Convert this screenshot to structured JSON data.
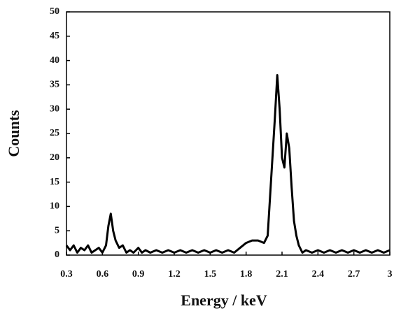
{
  "chart_data": {
    "type": "line",
    "x_label": "Energy  / keV",
    "y_label": "Counts",
    "x": [
      0.3,
      0.33,
      0.36,
      0.39,
      0.42,
      0.45,
      0.48,
      0.51,
      0.54,
      0.57,
      0.6,
      0.63,
      0.65,
      0.67,
      0.69,
      0.71,
      0.74,
      0.77,
      0.8,
      0.83,
      0.86,
      0.9,
      0.93,
      0.96,
      1.0,
      1.05,
      1.1,
      1.15,
      1.2,
      1.25,
      1.3,
      1.35,
      1.4,
      1.45,
      1.5,
      1.55,
      1.6,
      1.65,
      1.7,
      1.75,
      1.8,
      1.85,
      1.9,
      1.95,
      1.98,
      2.0,
      2.02,
      2.04,
      2.06,
      2.08,
      2.1,
      2.12,
      2.14,
      2.16,
      2.18,
      2.2,
      2.22,
      2.24,
      2.27,
      2.3,
      2.35,
      2.4,
      2.45,
      2.5,
      2.55,
      2.6,
      2.65,
      2.7,
      2.75,
      2.8,
      2.85,
      2.9,
      2.95,
      3.0
    ],
    "series": [
      {
        "color": "#000000",
        "values": [
          2,
          1,
          2,
          0.5,
          1.5,
          1,
          2,
          0.5,
          1,
          1.5,
          0.5,
          2,
          6,
          8.5,
          5,
          3,
          1.5,
          2,
          0.5,
          1,
          0.5,
          1.5,
          0.5,
          1,
          0.5,
          1,
          0.5,
          1,
          0.5,
          1,
          0.5,
          1,
          0.5,
          1,
          0.5,
          1,
          0.5,
          1,
          0.5,
          1.5,
          2.5,
          3,
          3,
          2.5,
          4,
          12,
          20,
          28,
          37,
          30,
          20,
          18,
          25,
          22,
          14,
          7,
          4,
          2,
          0.5,
          1,
          0.5,
          1,
          0.5,
          1,
          0.5,
          1,
          0.5,
          1,
          0.5,
          1,
          0.5,
          1,
          0.5,
          1
        ]
      }
    ],
    "xlim": [
      0.3,
      3
    ],
    "xticks": [
      0.3,
      0.6,
      0.9,
      1.2,
      1.5,
      1.8,
      2.1,
      2.4,
      2.7,
      3
    ],
    "ylim": [
      0,
      50
    ],
    "yticks": [
      0,
      5,
      10,
      15,
      20,
      25,
      30,
      35,
      40,
      45,
      50
    ]
  }
}
